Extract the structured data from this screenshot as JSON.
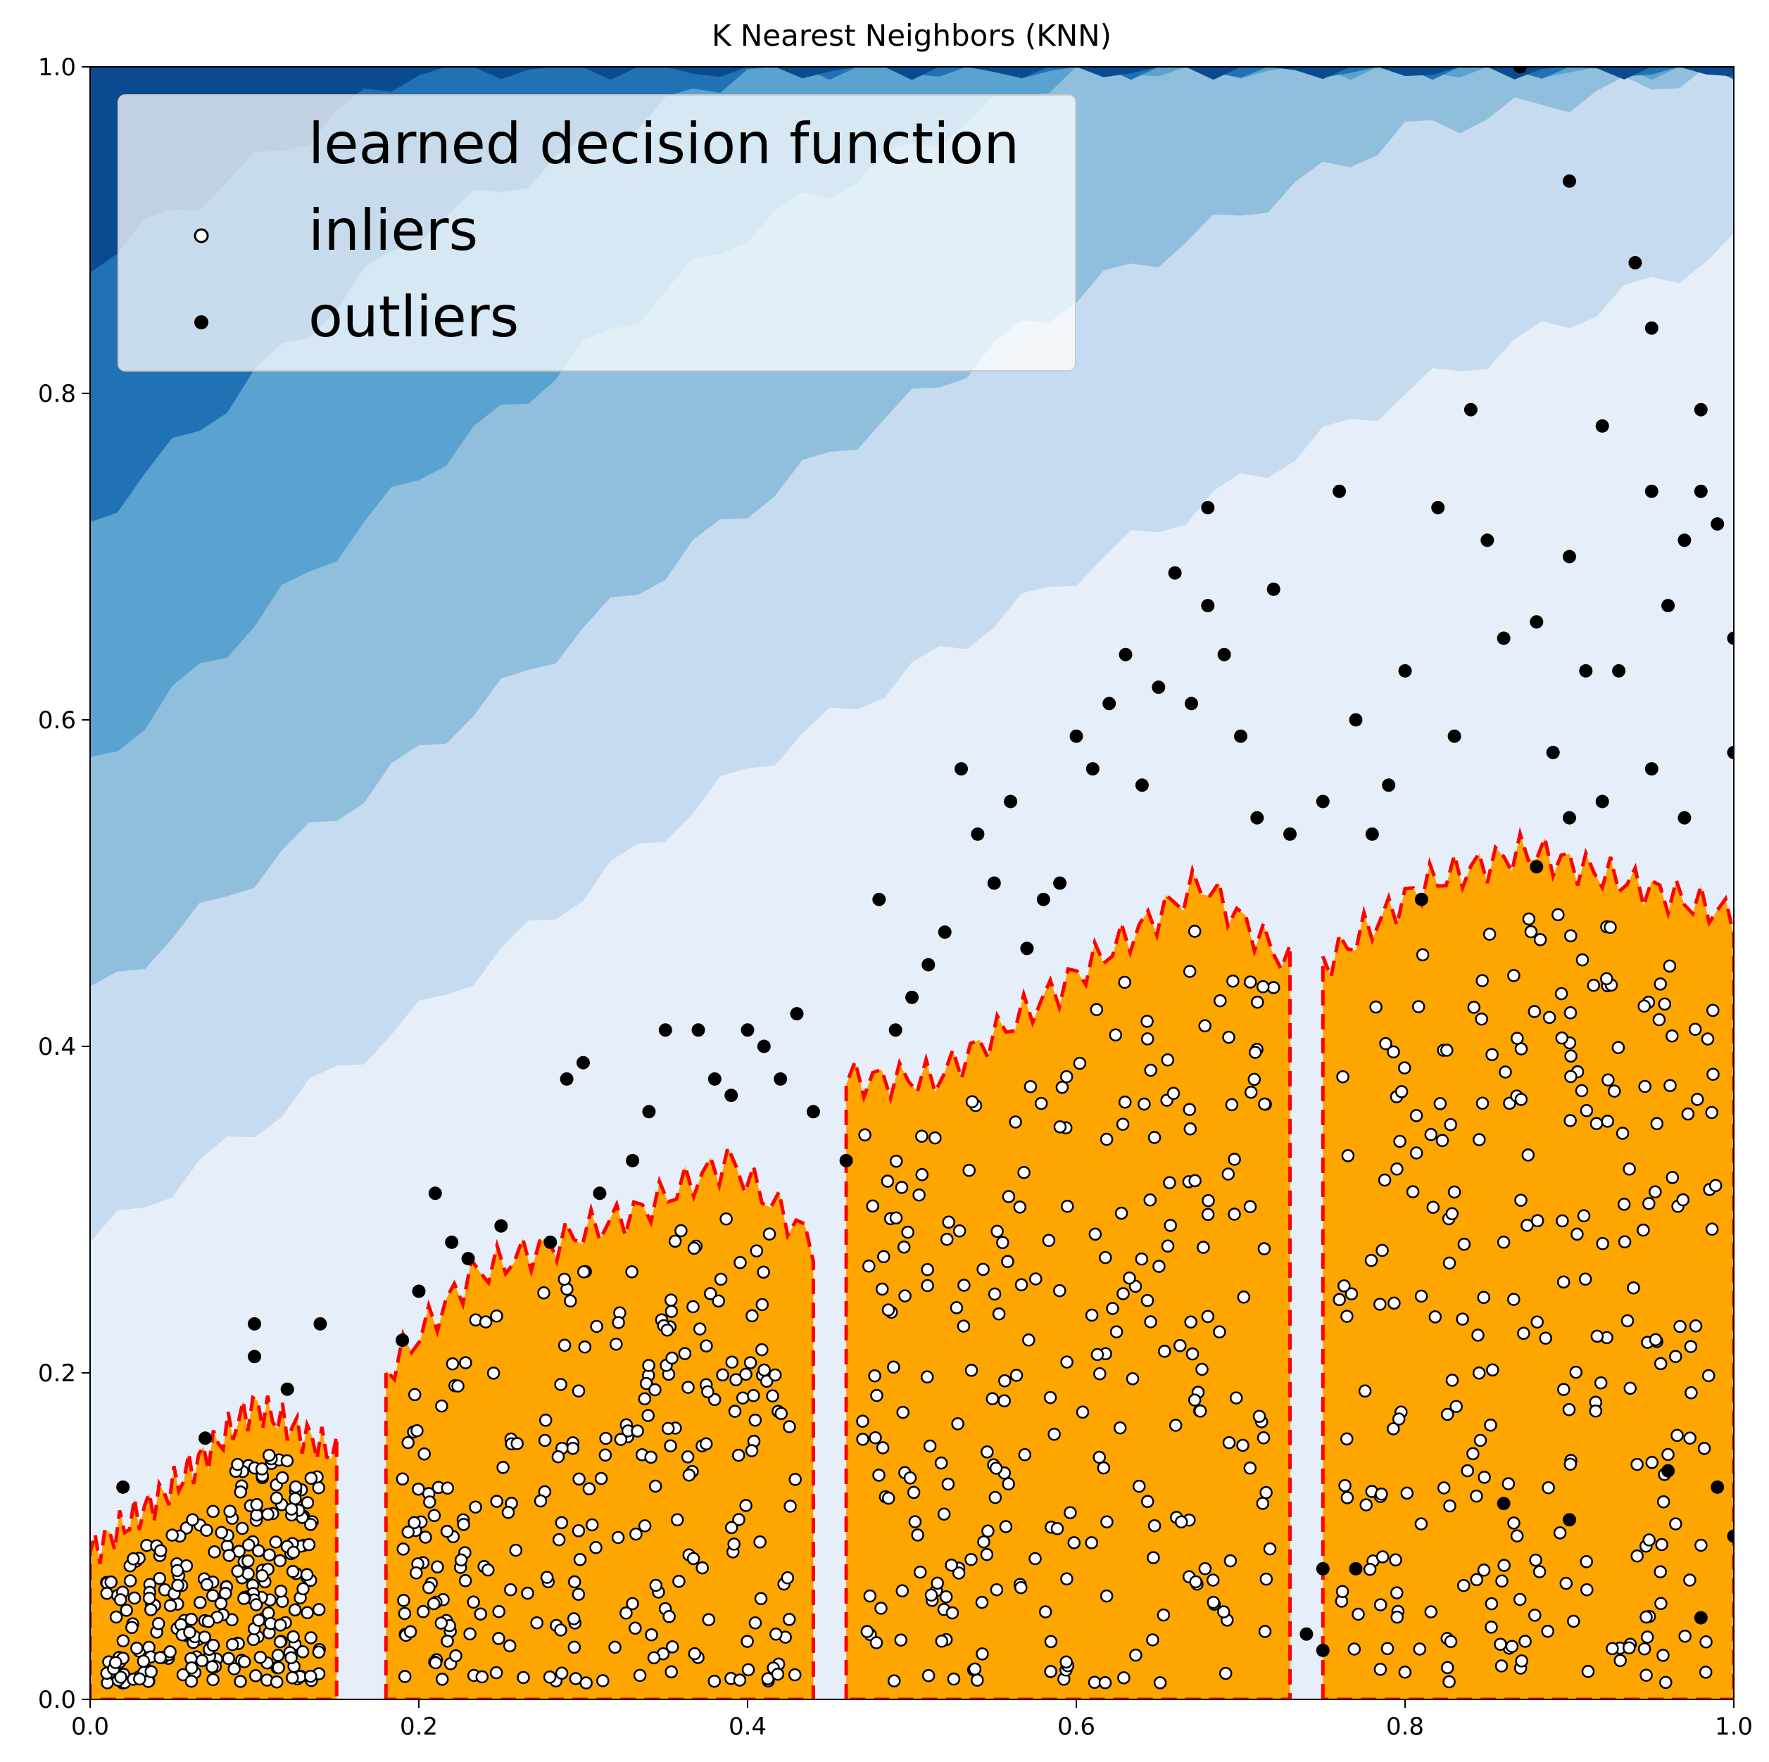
{
  "chart_data": {
    "type": "scatter",
    "title": "K Nearest Neighbors (KNN)",
    "xlabel": "",
    "ylabel": "",
    "xlim": [
      0.0,
      1.0
    ],
    "ylim": [
      0.0,
      1.0
    ],
    "x_ticks": [
      "0.0",
      "0.2",
      "0.4",
      "0.6",
      "0.8",
      "1.0"
    ],
    "y_ticks": [
      "0.0",
      "0.2",
      "0.4",
      "0.6",
      "0.8",
      "1.0"
    ],
    "grid": false,
    "legend": {
      "placement": "top-left",
      "entries": [
        "learned decision function",
        "inliers",
        "outliers"
      ]
    },
    "colors": {
      "inlier_region": "#ffa500",
      "threshold_contour": "#ff0000",
      "inlier_marker_face": "#ffffff",
      "outlier_marker_face": "#000000",
      "contour_levels": [
        "#e6eff9",
        "#c6dbef",
        "#8fbfdc",
        "#5aa2d0",
        "#2171b5",
        "#0a4a90"
      ]
    },
    "contour_bands_upper_y": {
      "x": [
        0.0,
        0.2,
        0.4,
        0.6,
        0.8,
        1.0
      ],
      "bands": [
        {
          "name": "level-1",
          "y": [
            0.28,
            0.42,
            0.57,
            0.69,
            0.8,
            0.89
          ]
        },
        {
          "name": "level-2",
          "y": [
            0.43,
            0.58,
            0.73,
            0.86,
            0.96,
            1.0
          ]
        },
        {
          "name": "level-3",
          "y": [
            0.57,
            0.75,
            0.9,
            1.0,
            1.0,
            1.0
          ]
        },
        {
          "name": "level-4",
          "y": [
            0.72,
            0.9,
            1.0,
            1.0,
            1.0,
            1.0
          ]
        },
        {
          "name": "level-5",
          "y": [
            0.88,
            1.0,
            1.0,
            1.0,
            1.0,
            1.0
          ]
        }
      ]
    },
    "inlier_clusters": [
      {
        "x_range": [
          0.0,
          0.15
        ],
        "y_max": [
          0.09,
          0.13,
          0.18,
          0.15
        ]
      },
      {
        "x_range": [
          0.18,
          0.44
        ],
        "y_max": [
          0.2,
          0.26,
          0.28,
          0.3,
          0.33,
          0.28
        ]
      },
      {
        "x_range": [
          0.46,
          0.73
        ],
        "y_max": [
          0.38,
          0.38,
          0.42,
          0.46,
          0.5,
          0.45
        ]
      },
      {
        "x_range": [
          0.75,
          1.0
        ],
        "y_max": [
          0.45,
          0.5,
          0.52,
          0.5,
          0.48
        ]
      }
    ],
    "outliers": [
      [
        0.02,
        0.13
      ],
      [
        0.07,
        0.16
      ],
      [
        0.1,
        0.23
      ],
      [
        0.1,
        0.21
      ],
      [
        0.12,
        0.19
      ],
      [
        0.14,
        0.23
      ],
      [
        0.19,
        0.22
      ],
      [
        0.2,
        0.25
      ],
      [
        0.21,
        0.31
      ],
      [
        0.22,
        0.28
      ],
      [
        0.23,
        0.27
      ],
      [
        0.25,
        0.29
      ],
      [
        0.28,
        0.28
      ],
      [
        0.29,
        0.38
      ],
      [
        0.3,
        0.39
      ],
      [
        0.31,
        0.31
      ],
      [
        0.33,
        0.33
      ],
      [
        0.34,
        0.36
      ],
      [
        0.35,
        0.41
      ],
      [
        0.37,
        0.41
      ],
      [
        0.38,
        0.38
      ],
      [
        0.39,
        0.37
      ],
      [
        0.4,
        0.41
      ],
      [
        0.41,
        0.4
      ],
      [
        0.42,
        0.38
      ],
      [
        0.43,
        0.42
      ],
      [
        0.44,
        0.36
      ],
      [
        0.46,
        0.33
      ],
      [
        0.48,
        0.49
      ],
      [
        0.49,
        0.41
      ],
      [
        0.5,
        0.43
      ],
      [
        0.51,
        0.45
      ],
      [
        0.52,
        0.47
      ],
      [
        0.53,
        0.57
      ],
      [
        0.54,
        0.53
      ],
      [
        0.55,
        0.5
      ],
      [
        0.56,
        0.55
      ],
      [
        0.57,
        0.46
      ],
      [
        0.58,
        0.49
      ],
      [
        0.59,
        0.5
      ],
      [
        0.6,
        0.59
      ],
      [
        0.61,
        0.57
      ],
      [
        0.62,
        0.61
      ],
      [
        0.63,
        0.64
      ],
      [
        0.64,
        0.56
      ],
      [
        0.65,
        0.62
      ],
      [
        0.66,
        0.69
      ],
      [
        0.67,
        0.61
      ],
      [
        0.68,
        0.73
      ],
      [
        0.68,
        0.67
      ],
      [
        0.69,
        0.64
      ],
      [
        0.7,
        0.59
      ],
      [
        0.71,
        0.54
      ],
      [
        0.72,
        0.68
      ],
      [
        0.73,
        0.53
      ],
      [
        0.75,
        0.55
      ],
      [
        0.76,
        0.74
      ],
      [
        0.77,
        0.6
      ],
      [
        0.78,
        0.53
      ],
      [
        0.79,
        0.56
      ],
      [
        0.8,
        0.63
      ],
      [
        0.81,
        0.49
      ],
      [
        0.82,
        0.73
      ],
      [
        0.83,
        0.59
      ],
      [
        0.84,
        0.79
      ],
      [
        0.85,
        0.71
      ],
      [
        0.86,
        0.65
      ],
      [
        0.87,
        1.0
      ],
      [
        0.88,
        0.66
      ],
      [
        0.89,
        0.58
      ],
      [
        0.9,
        0.7
      ],
      [
        0.9,
        0.93
      ],
      [
        0.91,
        0.63
      ],
      [
        0.92,
        0.78
      ],
      [
        0.93,
        0.63
      ],
      [
        0.94,
        0.88
      ],
      [
        0.95,
        0.84
      ],
      [
        0.95,
        0.74
      ],
      [
        0.96,
        0.67
      ],
      [
        0.97,
        0.71
      ],
      [
        0.98,
        0.79
      ],
      [
        0.98,
        0.74
      ],
      [
        0.99,
        0.72
      ],
      [
        1.0,
        0.65
      ],
      [
        1.0,
        0.58
      ],
      [
        0.88,
        0.51
      ],
      [
        0.9,
        0.54
      ],
      [
        0.92,
        0.55
      ],
      [
        0.95,
        0.57
      ],
      [
        0.97,
        0.54
      ],
      [
        0.74,
        0.04
      ],
      [
        0.75,
        0.08
      ],
      [
        0.77,
        0.08
      ],
      [
        1.0,
        0.1
      ],
      [
        0.99,
        0.13
      ],
      [
        0.98,
        0.05
      ],
      [
        0.96,
        0.14
      ],
      [
        0.9,
        0.11
      ],
      [
        0.86,
        0.12
      ],
      [
        0.75,
        0.03
      ]
    ]
  }
}
